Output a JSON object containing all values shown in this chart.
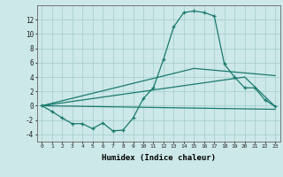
{
  "xlabel": "Humidex (Indice chaleur)",
  "background_color": "#cce8e8",
  "grid_color": "#aacfcf",
  "line_color": "#1a7a6e",
  "x_ticks": [
    0,
    1,
    2,
    3,
    4,
    5,
    6,
    7,
    8,
    9,
    10,
    11,
    12,
    13,
    14,
    15,
    16,
    17,
    18,
    19,
    20,
    21,
    22,
    23
  ],
  "ylim": [
    -5,
    14
  ],
  "xlim": [
    -0.5,
    23.5
  ],
  "yticks": [
    -4,
    -2,
    0,
    2,
    4,
    6,
    8,
    10,
    12
  ],
  "series1_x": [
    0,
    1,
    2,
    3,
    4,
    5,
    6,
    7,
    8,
    9,
    10,
    11,
    12,
    13,
    14,
    15,
    16,
    17,
    18,
    19,
    20,
    21,
    22,
    23
  ],
  "series1_y": [
    0,
    -0.8,
    -1.7,
    -2.5,
    -2.5,
    -3.2,
    -2.4,
    -3.5,
    -3.4,
    -1.7,
    1.0,
    2.5,
    6.5,
    11.0,
    13.0,
    13.2,
    13.0,
    12.5,
    5.8,
    4.0,
    2.5,
    2.5,
    0.8,
    -0.1
  ],
  "series2_x": [
    0,
    23
  ],
  "series2_y": [
    0,
    -0.5
  ],
  "series3_x": [
    0,
    15,
    23
  ],
  "series3_y": [
    0,
    5.2,
    4.2
  ],
  "series4_x": [
    0,
    20,
    23
  ],
  "series4_y": [
    0,
    4.0,
    -0.1
  ]
}
